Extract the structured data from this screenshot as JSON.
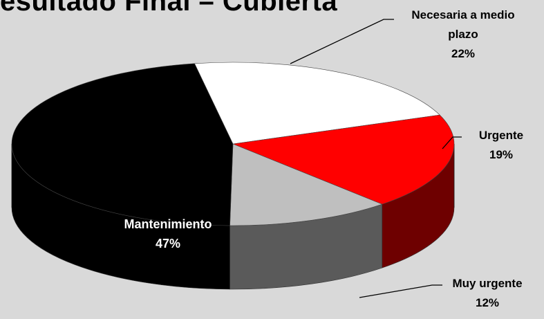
{
  "chart_data": {
    "type": "pie",
    "title": "esultado Final – Cubierta",
    "slices": [
      {
        "label": "Necesaria a medio plazo",
        "value": 22,
        "pct_text": "22%",
        "color": "#ffffff",
        "side_color": "#bfbfbf"
      },
      {
        "label": "Urgente",
        "value": 19,
        "pct_text": "19%",
        "color": "#ff0000",
        "side_color": "#6e0000"
      },
      {
        "label": "Muy urgente",
        "value": 12,
        "pct_text": "12%",
        "color": "#bfbfbf",
        "side_color": "#5a5a5a"
      },
      {
        "label": "Mantenimiento",
        "value": 47,
        "pct_text": "47%",
        "color": "#000000",
        "side_color": "#000000"
      }
    ],
    "background": "#d9d9d9",
    "three_d": true
  },
  "labels": {
    "necesaria_line1": "Necesaria a medio",
    "necesaria_line2": "plazo",
    "necesaria_pct": "22%",
    "urgente": "Urgente",
    "urgente_pct": "19%",
    "muy_urgente": "Muy urgente",
    "muy_urgente_pct": "12%",
    "mantenimiento": "Mantenimiento",
    "mantenimiento_pct": "47%"
  }
}
